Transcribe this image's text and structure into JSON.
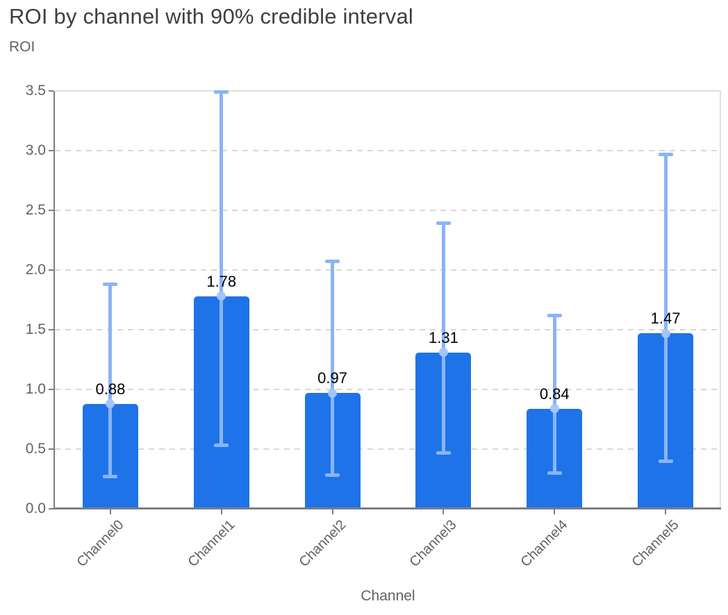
{
  "title": "ROI by channel with 90% credible interval",
  "y_axis_label": "ROI",
  "x_axis_label": "Channel",
  "colors": {
    "bar": "#1e73e8",
    "error_bar": "#8ab4f8",
    "marker": "#a6c5f7",
    "title_text": "#3c4043",
    "axis_text": "#5f6368",
    "value_label": "#000000",
    "axis_line": "#7b7f83",
    "gridline": "#d7d7d7",
    "plot_border": "#e1e1e1"
  },
  "chart_data": {
    "type": "bar",
    "title": "ROI by channel with 90% credible interval",
    "xlabel": "Channel",
    "ylabel": "ROI",
    "categories": [
      "Channel0",
      "Channel1",
      "Channel2",
      "Channel3",
      "Channel4",
      "Channel5"
    ],
    "series": [
      {
        "name": "roi",
        "values": [
          0.88,
          1.78,
          0.97,
          1.31,
          0.84,
          1.47
        ]
      },
      {
        "name": "ci_lower_90",
        "values": [
          0.27,
          0.53,
          0.28,
          0.47,
          0.3,
          0.4
        ]
      },
      {
        "name": "ci_upper_90",
        "values": [
          1.88,
          3.49,
          2.07,
          2.39,
          1.62,
          2.97
        ]
      }
    ],
    "value_labels": [
      "0.88",
      "1.78",
      "0.97",
      "1.31",
      "0.84",
      "1.47"
    ],
    "ylim": [
      0,
      3.5
    ],
    "yticks": [
      "0.0",
      "0.5",
      "1.0",
      "1.5",
      "2.0",
      "2.5",
      "3.0",
      "3.5"
    ],
    "grid": "horizontal dashed",
    "legend": "none",
    "error_bars": "90% credible interval with caps and point markers"
  }
}
